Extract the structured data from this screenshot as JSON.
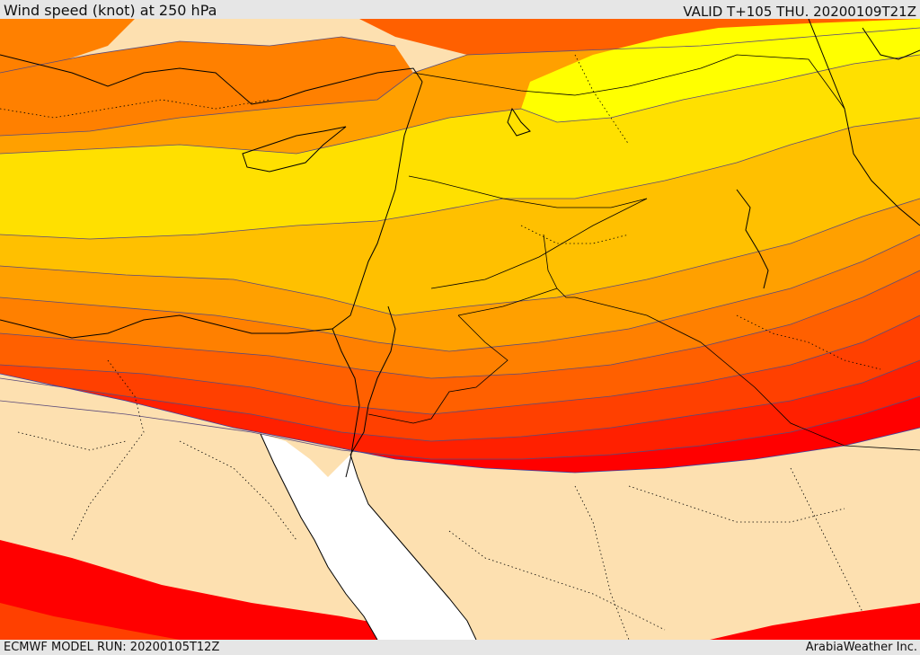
{
  "header": {
    "title": "Wind speed (knot) at 250 hPa",
    "valid": "VALID T+105 THU. 20200109T21Z"
  },
  "footer": {
    "model_run": "ECMWF MODEL RUN: 20200105T12Z",
    "credit": "ArabiaWeather Inc."
  },
  "colors": {
    "land_calm": "#fde0b0",
    "sea": "#ffffff",
    "band_light_yellow": "#ffff00",
    "band_yellow": "#ffe000",
    "band_gold": "#ffc000",
    "band_orange_light": "#ffa000",
    "band_orange": "#ff8000",
    "band_orange_dark": "#ff6000",
    "band_red_orange": "#ff4000",
    "band_red_light": "#ff2000",
    "band_red": "#ff0000",
    "contour_line": "#5a4a7a",
    "border_line": "#000000"
  }
}
